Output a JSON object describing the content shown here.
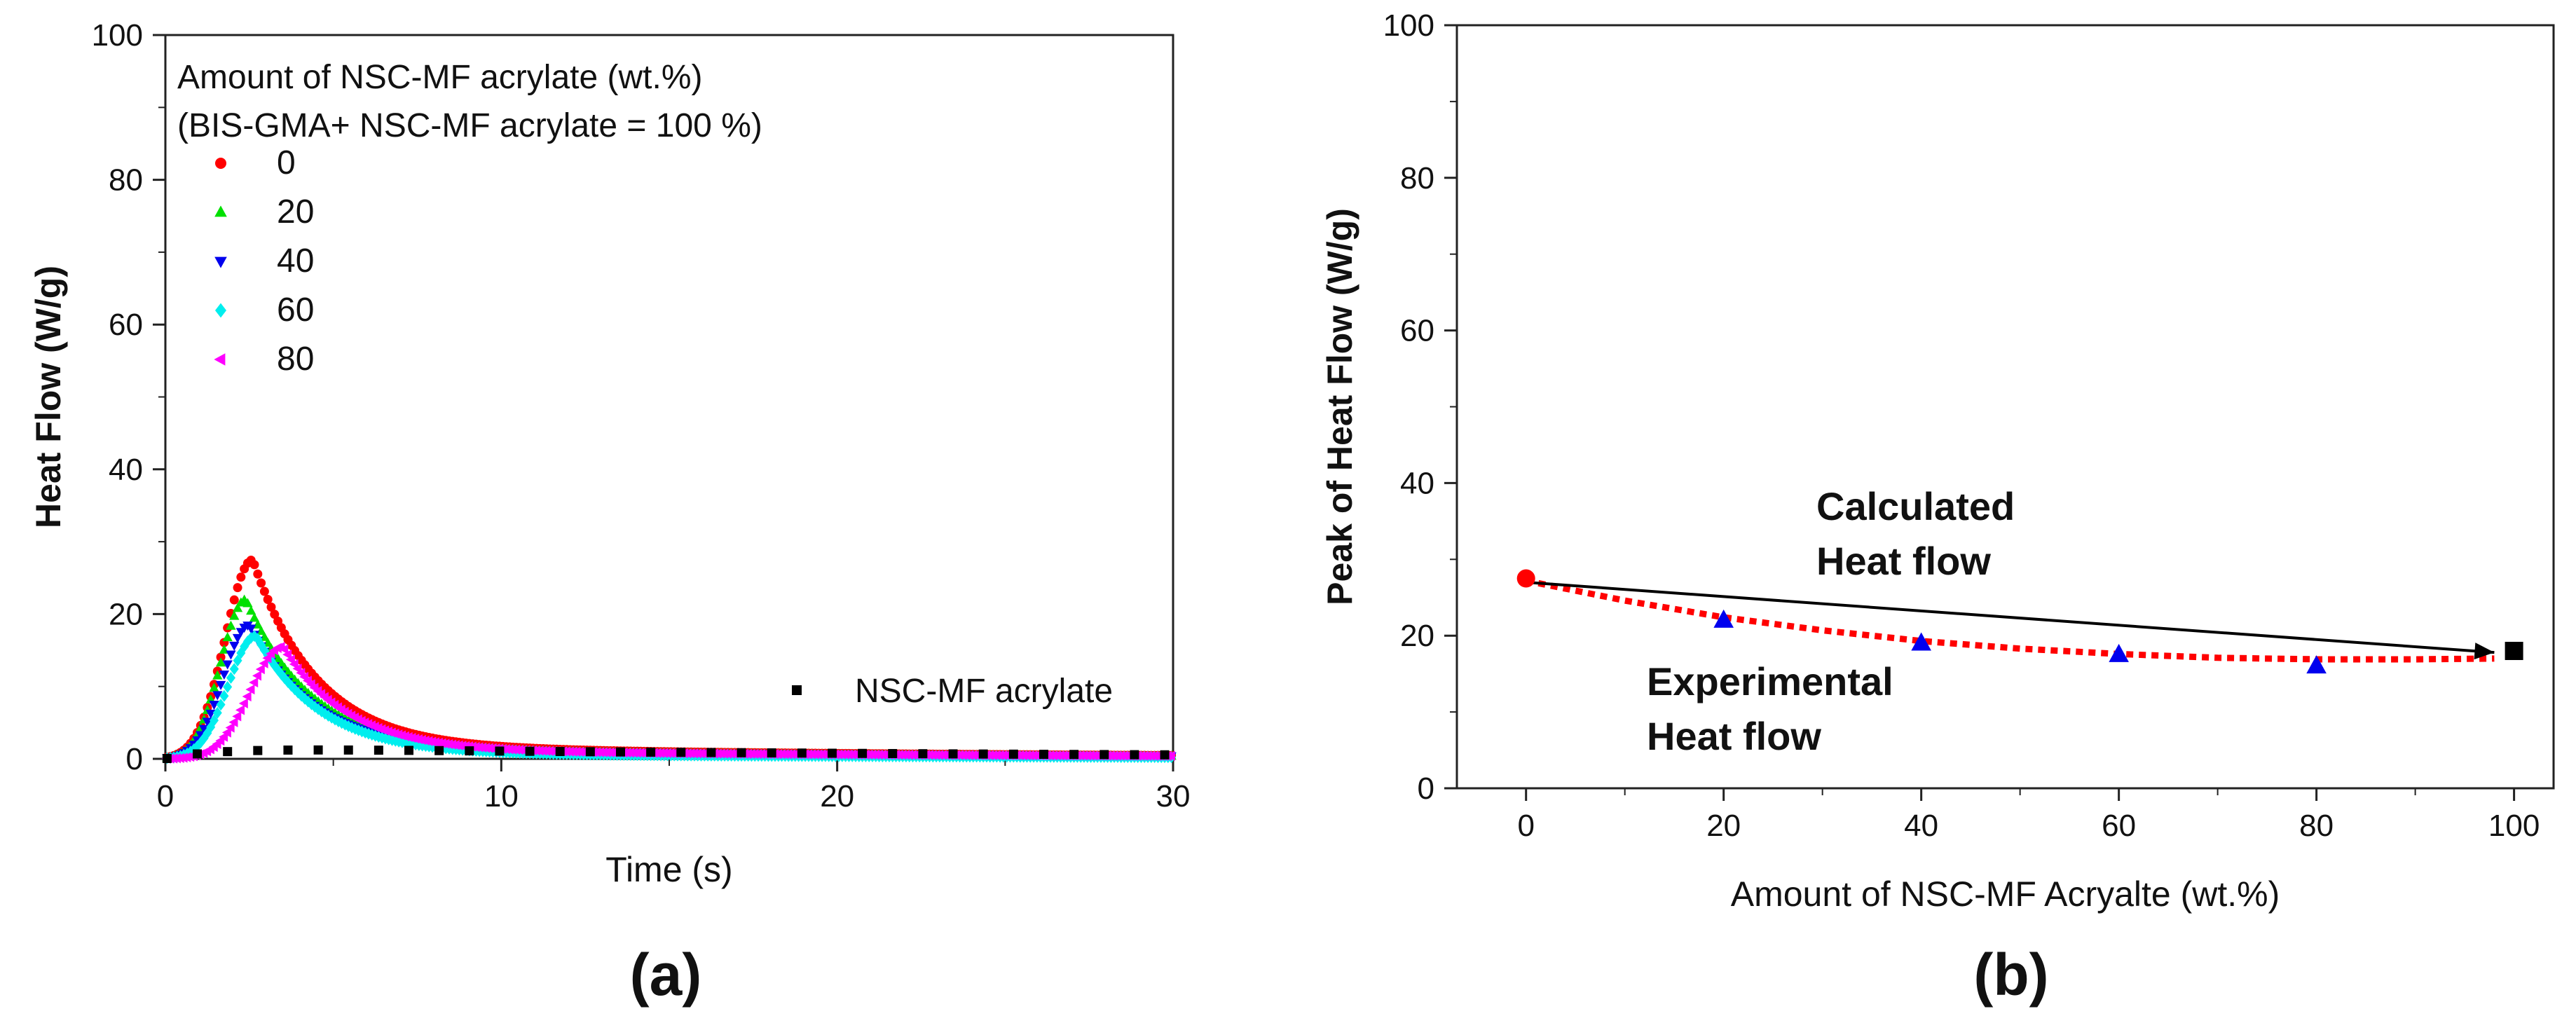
{
  "chart_data": [
    {
      "panel": "(a)",
      "type": "scatter",
      "xlabel": "Time (s)",
      "ylabel": "Heat Flow (W/g)",
      "xlim": [
        0,
        30
      ],
      "ylim": [
        0,
        100
      ],
      "xticks": [
        "0",
        "10",
        "20",
        "30"
      ],
      "yticks": [
        "0",
        "20",
        "40",
        "60",
        "80",
        "100"
      ],
      "legend_title": [
        "Amount of NSC-MF acrylate (wt.%)",
        "(BIS-GMA+ NSC-MF acrylate = 100 %)"
      ],
      "legend_position": "top-left",
      "series": [
        {
          "name": "0",
          "marker": "circle",
          "color": "#ff0000",
          "peak_time": 2.6,
          "peak_value": 27.5,
          "width_rise": 1.1,
          "tail_start": 1.7,
          "tail_decay": 3.5
        },
        {
          "name": "20",
          "marker": "triangle-up",
          "color": "#00e000",
          "peak_time": 2.4,
          "peak_value": 22.0,
          "width_rise": 1.0,
          "tail_start": 1.4,
          "tail_decay": 3.5
        },
        {
          "name": "40",
          "marker": "triangle-down",
          "color": "#0000ee",
          "peak_time": 2.5,
          "peak_value": 18.5,
          "width_rise": 1.05,
          "tail_start": 1.3,
          "tail_decay": 3.8
        },
        {
          "name": "60",
          "marker": "diamond",
          "color": "#00eeee",
          "peak_time": 2.7,
          "peak_value": 17.0,
          "width_rise": 1.1,
          "tail_start": 0.8,
          "tail_decay": 3.6
        },
        {
          "name": "80",
          "marker": "triangle-left",
          "color": "#ff00ff",
          "peak_time": 3.5,
          "peak_value": 15.5,
          "width_rise": 1.3,
          "tail_start": 1.2,
          "tail_decay": 4.0
        },
        {
          "name": "NSC-MF acrylate",
          "marker": "square",
          "color": "#000000",
          "peak_time": 0,
          "peak_value": 0,
          "width_rise": 1.0,
          "tail_start": 1.5,
          "tail_decay": 30
        }
      ]
    },
    {
      "panel": "(b)",
      "type": "scatter",
      "xlabel": "Amount of NSC-MF Acryalte (wt.%)",
      "ylabel": "Peak of Heat Flow (W/g)",
      "xlim": [
        -7,
        104
      ],
      "ylim": [
        0,
        100
      ],
      "xticks": [
        "0",
        "20",
        "40",
        "60",
        "80",
        "100"
      ],
      "yticks": [
        "0",
        "20",
        "40",
        "60",
        "80",
        "100"
      ],
      "points": [
        {
          "x": 0,
          "y": 27.5,
          "marker": "circle",
          "color": "#ff0000"
        },
        {
          "x": 20,
          "y": 22.0,
          "marker": "triangle-up",
          "color": "#0000ee"
        },
        {
          "x": 40,
          "y": 19.0,
          "marker": "triangle-up",
          "color": "#0000ee"
        },
        {
          "x": 60,
          "y": 17.5,
          "marker": "triangle-up",
          "color": "#0000ee"
        },
        {
          "x": 80,
          "y": 16.0,
          "marker": "triangle-up",
          "color": "#0000ee"
        },
        {
          "x": 100,
          "y": 18.0,
          "marker": "square",
          "color": "#000000"
        }
      ],
      "calculated_line": {
        "x": [
          0,
          98
        ],
        "y": [
          27.0,
          17.8
        ],
        "color": "#000000"
      },
      "experimental_fit": {
        "x": [
          0,
          10,
          20,
          30,
          40,
          50,
          60,
          70,
          80,
          90,
          98
        ],
        "y": [
          27.2,
          24.6,
          22.4,
          20.7,
          19.3,
          18.3,
          17.6,
          17.1,
          16.9,
          16.9,
          17.0
        ],
        "color": "#ff0000"
      },
      "annotations": [
        {
          "lines": [
            "Calculated",
            "Heat flow"
          ]
        },
        {
          "lines": [
            "Experimental",
            "Heat flow"
          ]
        }
      ]
    }
  ],
  "panel_labels": [
    "(a)",
    "(b)"
  ]
}
